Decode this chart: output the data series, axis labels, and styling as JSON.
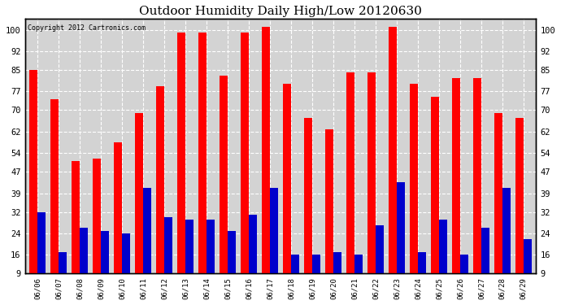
{
  "title": "Outdoor Humidity Daily High/Low 20120630",
  "copyright": "Copyright 2012 Cartronics.com",
  "dates": [
    "06/06",
    "06/07",
    "06/08",
    "06/09",
    "06/10",
    "06/11",
    "06/12",
    "06/13",
    "06/14",
    "06/15",
    "06/16",
    "06/17",
    "06/18",
    "06/19",
    "06/20",
    "06/21",
    "06/22",
    "06/23",
    "06/24",
    "06/25",
    "06/26",
    "06/27",
    "06/28",
    "06/29"
  ],
  "highs": [
    85,
    74,
    51,
    52,
    58,
    69,
    79,
    99,
    99,
    83,
    99,
    101,
    80,
    67,
    63,
    84,
    84,
    101,
    80,
    75,
    82,
    82,
    69,
    67
  ],
  "lows": [
    32,
    17,
    26,
    25,
    24,
    41,
    30,
    29,
    29,
    25,
    31,
    41,
    16,
    16,
    17,
    16,
    27,
    43,
    17,
    29,
    16,
    26,
    41,
    22
  ],
  "high_color": "#ff0000",
  "low_color": "#0000cc",
  "background_color": "#ffffff",
  "plot_bg_color": "#d3d3d3",
  "yticks": [
    9,
    16,
    24,
    32,
    39,
    47,
    54,
    62,
    70,
    77,
    85,
    92,
    100
  ],
  "ymin": 9,
  "ymax": 104,
  "title_fontsize": 11,
  "bar_width": 0.38
}
